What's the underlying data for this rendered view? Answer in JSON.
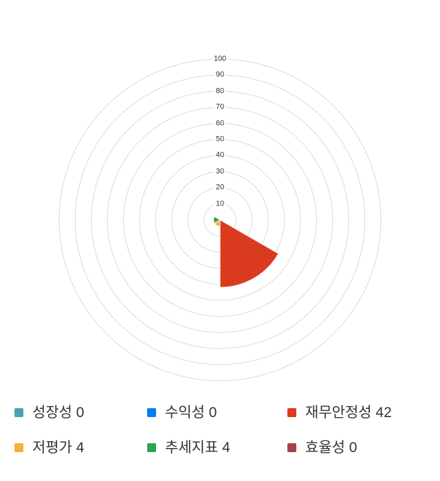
{
  "chart_data": {
    "type": "bar",
    "subtype": "polar-column",
    "title": "",
    "categories": [
      "성장성",
      "수익성",
      "재무안정성",
      "저평가",
      "추세지표",
      "효율성"
    ],
    "values": [
      0,
      0,
      42,
      4,
      4,
      0
    ],
    "colors": [
      "#4BA2B4",
      "#0B7BF2",
      "#DA3B1E",
      "#F8B03A",
      "#2FA254",
      "#A5414F"
    ],
    "ylim": [
      0,
      100
    ],
    "yticks": [
      10,
      20,
      30,
      40,
      50,
      60,
      70,
      80,
      90,
      100
    ],
    "start_angle_deg": 0,
    "direction": "clockwise",
    "sector_span_deg": 60,
    "grid_circle_color": "#d9d9d9",
    "tick_label_color": "#333333",
    "legend_position": "bottom"
  },
  "legend": {
    "items": [
      {
        "label": "성장성",
        "value": 0,
        "display": "성장성 0",
        "color": "#4BA2B4"
      },
      {
        "label": "수익성",
        "value": 0,
        "display": "수익성 0",
        "color": "#0B7BF2"
      },
      {
        "label": "재무안정성",
        "value": 42,
        "display": "재무안정성 42",
        "color": "#DA3B1E"
      },
      {
        "label": "저평가",
        "value": 4,
        "display": "저평가 4",
        "color": "#F8B03A"
      },
      {
        "label": "추세지표",
        "value": 4,
        "display": "추세지표 4",
        "color": "#2FA254"
      },
      {
        "label": "효율성",
        "value": 0,
        "display": "효율성 0",
        "color": "#A5414F"
      }
    ]
  }
}
